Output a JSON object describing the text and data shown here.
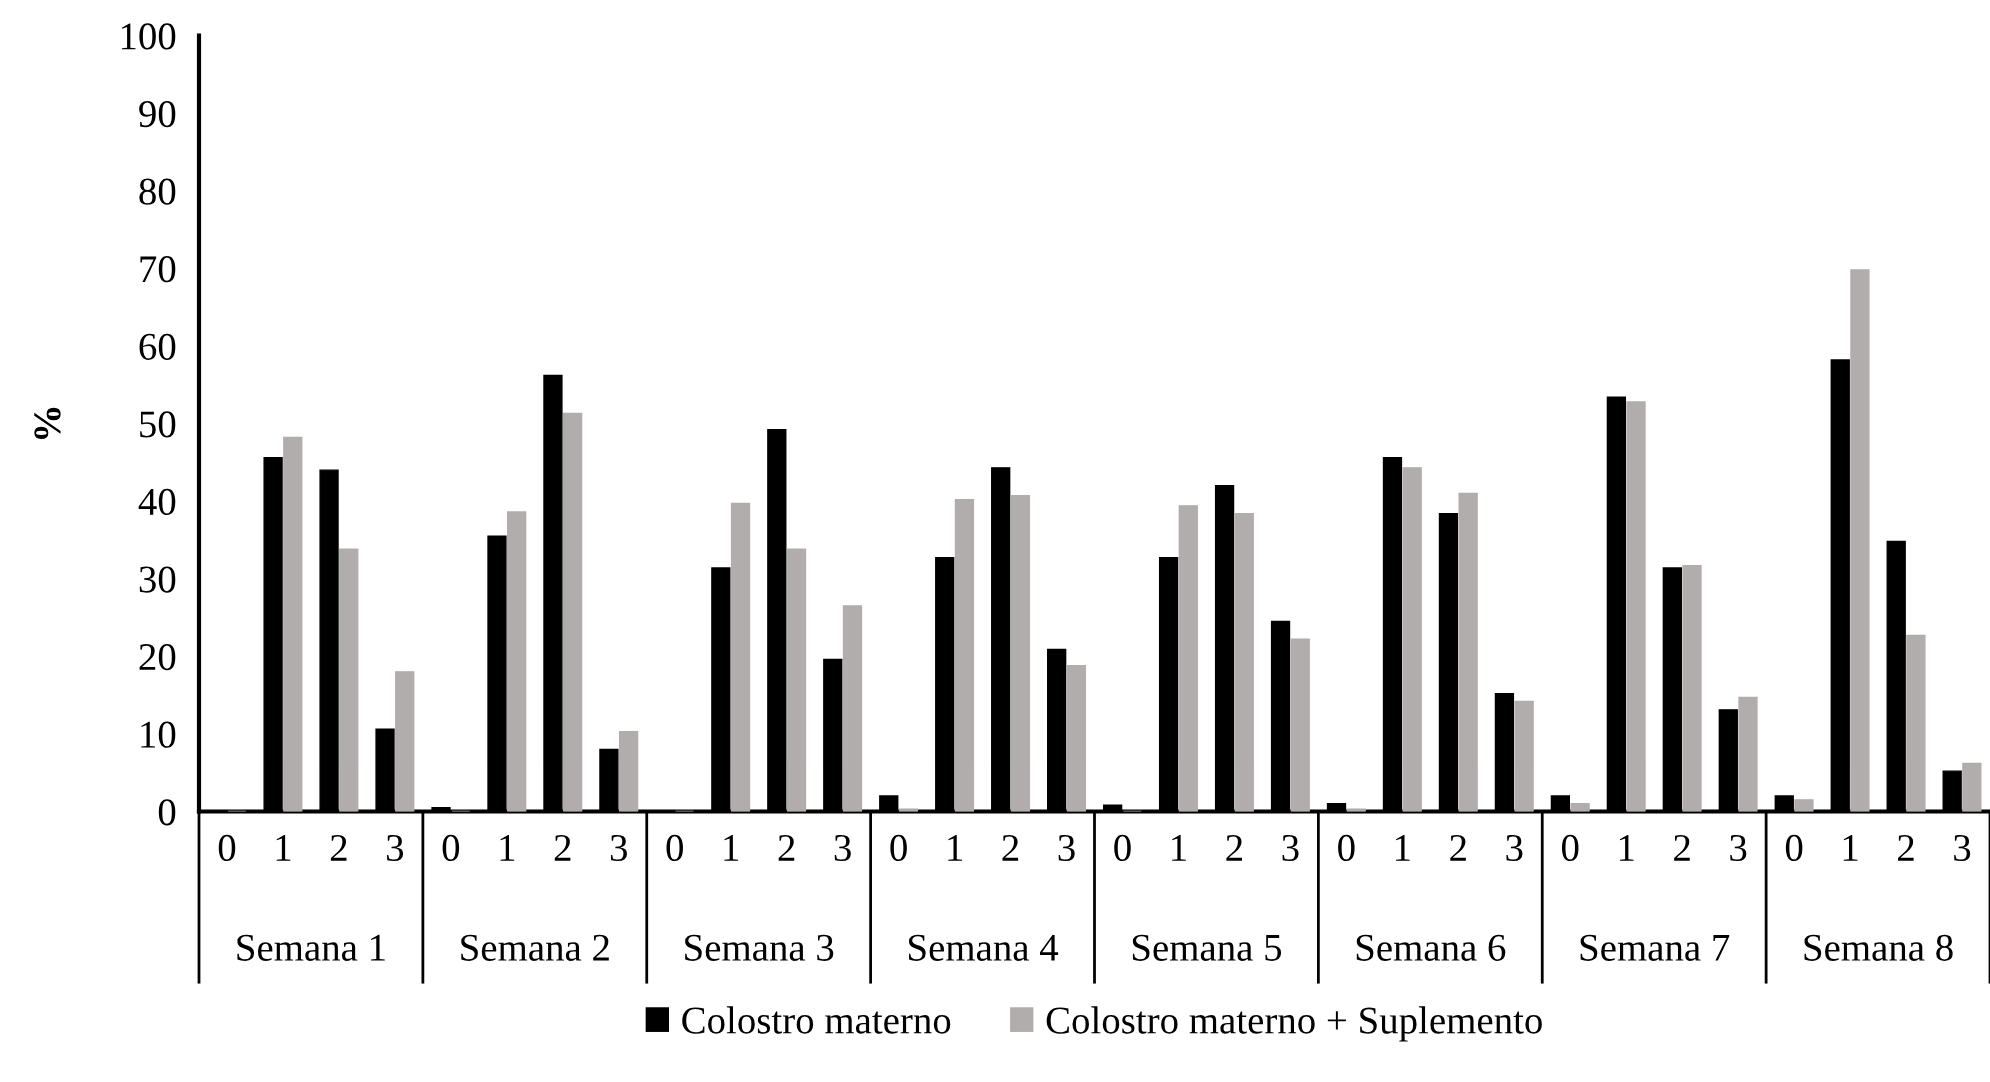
{
  "chart_data": {
    "type": "bar",
    "ylabel": "%",
    "ylim": [
      0,
      100
    ],
    "yticks": [
      0,
      10,
      20,
      30,
      40,
      50,
      60,
      70,
      80,
      90,
      100
    ],
    "grid": false,
    "legend": "bottom",
    "categories": [
      "0",
      "1",
      "2",
      "3",
      "0",
      "1",
      "2",
      "3",
      "0",
      "1",
      "2",
      "3",
      "0",
      "1",
      "2",
      "3",
      "0",
      "1",
      "2",
      "3",
      "0",
      "1",
      "2",
      "3",
      "0",
      "1",
      "2",
      "3",
      "0",
      "1",
      "2",
      "3"
    ],
    "annotations": [
      "Semana 1",
      "Semana 2",
      "Semana 3",
      "Semana 4",
      "Semana 5",
      "Semana 6",
      "Semana 7",
      "Semana 8"
    ],
    "series": [
      {
        "name": "Colostro materno",
        "color": "#000000",
        "values": [
          0,
          45.6,
          44,
          10.6,
          0.5,
          35.5,
          56.2,
          8,
          0,
          31.4,
          49.2,
          19.6,
          2,
          32.7,
          44.3,
          20.9,
          0.8,
          32.7,
          42,
          24.5,
          1,
          45.6,
          38.4,
          15.2,
          2,
          53.4,
          31.4,
          13.1,
          2,
          58.2,
          34.8,
          5.2
        ]
      },
      {
        "name": "Colostro materno + Suplemento",
        "color": "#b0adac",
        "values": [
          0,
          48.2,
          33.8,
          18,
          0,
          38.6,
          51.3,
          10.3,
          0,
          39.7,
          33.8,
          26.5,
          0.3,
          40.2,
          40.7,
          18.8,
          0,
          39.4,
          38.4,
          22.2,
          0.3,
          44.3,
          41,
          14.2,
          1,
          52.8,
          31.7,
          14.7,
          1.5,
          69.8,
          22.7,
          6.2
        ]
      }
    ]
  }
}
